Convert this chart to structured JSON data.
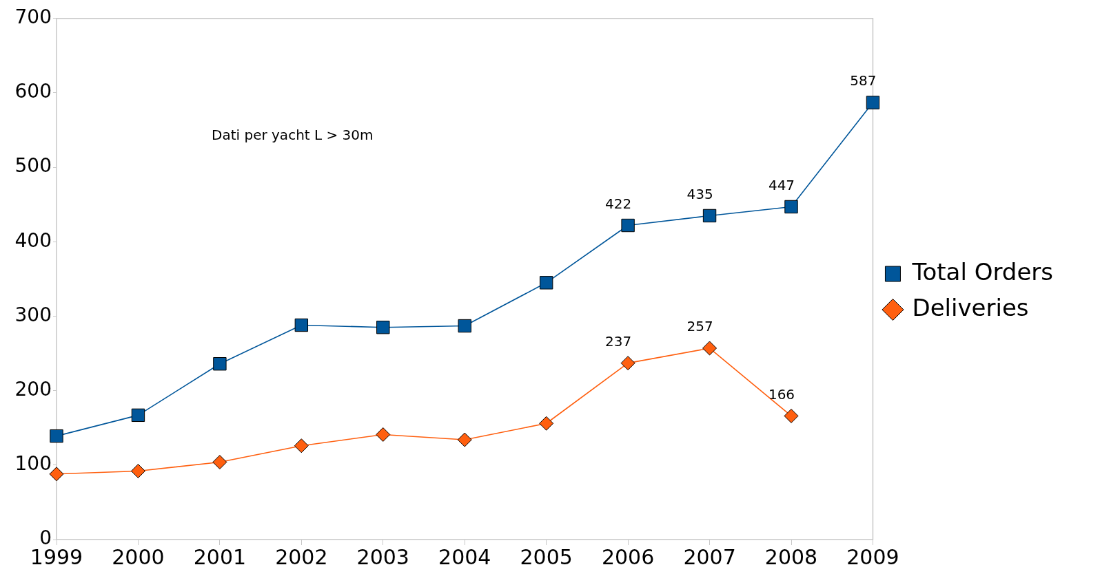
{
  "chart_data": {
    "type": "line",
    "categories": [
      "1999",
      "2000",
      "2001",
      "2002",
      "2003",
      "2004",
      "2005",
      "2006",
      "2007",
      "2008",
      "2009"
    ],
    "series": [
      {
        "name": "Total Orders",
        "color": "#00569a",
        "marker": "square",
        "values": [
          139,
          167,
          236,
          288,
          285,
          287,
          345,
          422,
          435,
          447,
          587
        ],
        "value_labels": [
          null,
          null,
          null,
          null,
          null,
          null,
          null,
          "422",
          "435",
          "447",
          "587"
        ]
      },
      {
        "name": "Deliveries",
        "color": "#ff5f0f",
        "marker": "diamond",
        "values": [
          88,
          92,
          104,
          126,
          141,
          134,
          156,
          237,
          257,
          166,
          null
        ],
        "value_labels": [
          null,
          null,
          null,
          null,
          null,
          null,
          null,
          "237",
          "257",
          "166",
          null
        ]
      }
    ],
    "ylim": [
      0,
      700
    ],
    "yticks": [
      0,
      100,
      200,
      300,
      400,
      500,
      600,
      700
    ],
    "grid": false,
    "legend": "right",
    "annotations": [
      "Dati per yacht L > 30m"
    ]
  }
}
